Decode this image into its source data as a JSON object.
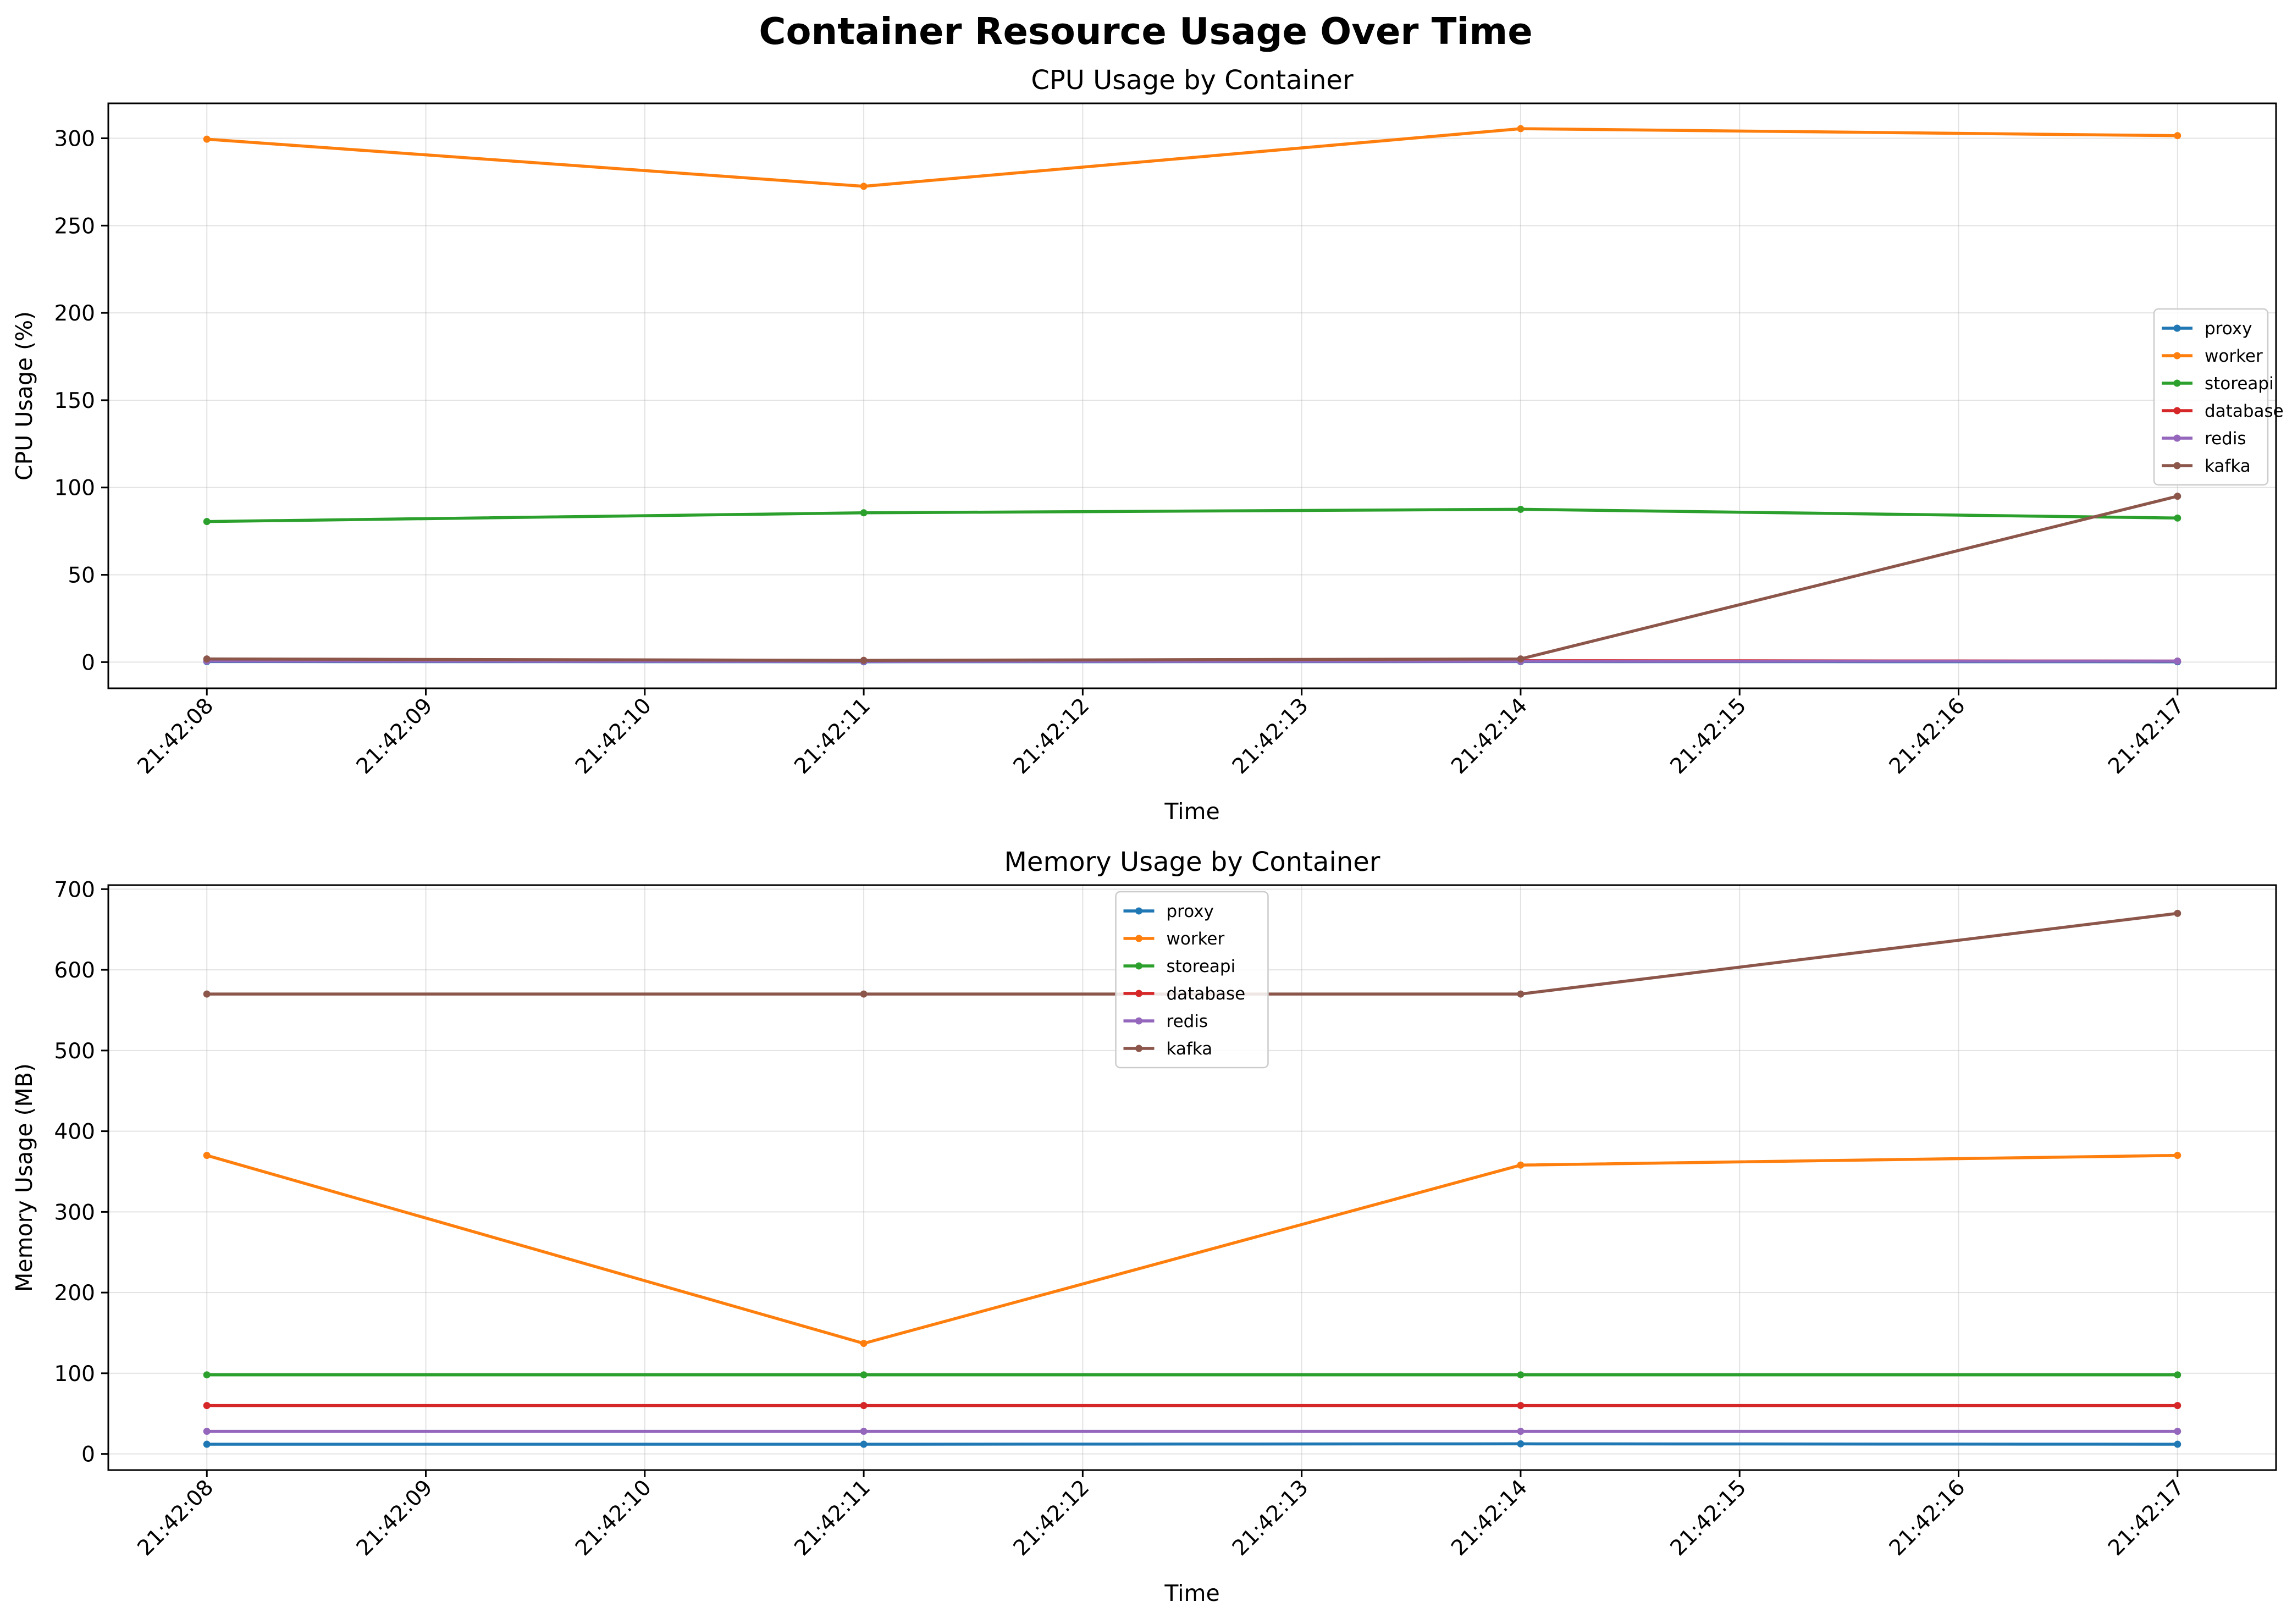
{
  "figure": {
    "suptitle": "Container Resource Usage Over Time"
  },
  "chart_data": [
    {
      "type": "line",
      "title": "CPU Usage by Container",
      "xlabel": "Time",
      "ylabel": "CPU Usage (%)",
      "x_ticks": [
        "21:42:08",
        "21:42:09",
        "21:42:10",
        "21:42:11",
        "21:42:12",
        "21:42:13",
        "21:42:14",
        "21:42:15",
        "21:42:16",
        "21:42:17"
      ],
      "x": [
        "21:42:08",
        "21:42:11",
        "21:42:14",
        "21:42:17"
      ],
      "xlim": [
        "21:42:07.55",
        "21:42:17.45"
      ],
      "ylim": [
        -15,
        320
      ],
      "y_ticks": [
        0,
        50,
        100,
        150,
        200,
        250,
        300
      ],
      "grid": true,
      "legend_position": "center-right",
      "series": [
        {
          "name": "proxy",
          "color": "#1f77b4",
          "values": [
            0.3,
            0.2,
            0.3,
            0.2
          ]
        },
        {
          "name": "worker",
          "color": "#ff7f0e",
          "values": [
            299.5,
            272.5,
            305.5,
            301.5
          ]
        },
        {
          "name": "storeapi",
          "color": "#2ca02c",
          "values": [
            80.5,
            85.5,
            87.5,
            82.5
          ]
        },
        {
          "name": "database",
          "color": "#d62728",
          "values": [
            0.8,
            0.5,
            0.8,
            0.6
          ]
        },
        {
          "name": "redis",
          "color": "#9467bd",
          "values": [
            0.6,
            0.4,
            0.5,
            0.6
          ]
        },
        {
          "name": "kafka",
          "color": "#8c564b",
          "values": [
            1.8,
            1.0,
            1.8,
            95.0
          ]
        }
      ]
    },
    {
      "type": "line",
      "title": "Memory Usage by Container",
      "xlabel": "Time",
      "ylabel": "Memory Usage (MB)",
      "x_ticks": [
        "21:42:08",
        "21:42:09",
        "21:42:10",
        "21:42:11",
        "21:42:12",
        "21:42:13",
        "21:42:14",
        "21:42:15",
        "21:42:16",
        "21:42:17"
      ],
      "x": [
        "21:42:08",
        "21:42:11",
        "21:42:14",
        "21:42:17"
      ],
      "xlim": [
        "21:42:07.55",
        "21:42:17.45"
      ],
      "ylim": [
        -20,
        705
      ],
      "y_ticks": [
        0,
        100,
        200,
        300,
        400,
        500,
        600,
        700
      ],
      "grid": true,
      "legend_position": "upper-center",
      "series": [
        {
          "name": "proxy",
          "color": "#1f77b4",
          "values": [
            12,
            12,
            12.5,
            12
          ]
        },
        {
          "name": "worker",
          "color": "#ff7f0e",
          "values": [
            370,
            137,
            358,
            370
          ]
        },
        {
          "name": "storeapi",
          "color": "#2ca02c",
          "values": [
            98,
            98,
            98,
            98
          ]
        },
        {
          "name": "database",
          "color": "#d62728",
          "values": [
            60,
            60,
            60,
            60
          ]
        },
        {
          "name": "redis",
          "color": "#9467bd",
          "values": [
            28,
            28,
            28,
            28
          ]
        },
        {
          "name": "kafka",
          "color": "#8c564b",
          "values": [
            570,
            570,
            570,
            670
          ]
        }
      ]
    }
  ]
}
